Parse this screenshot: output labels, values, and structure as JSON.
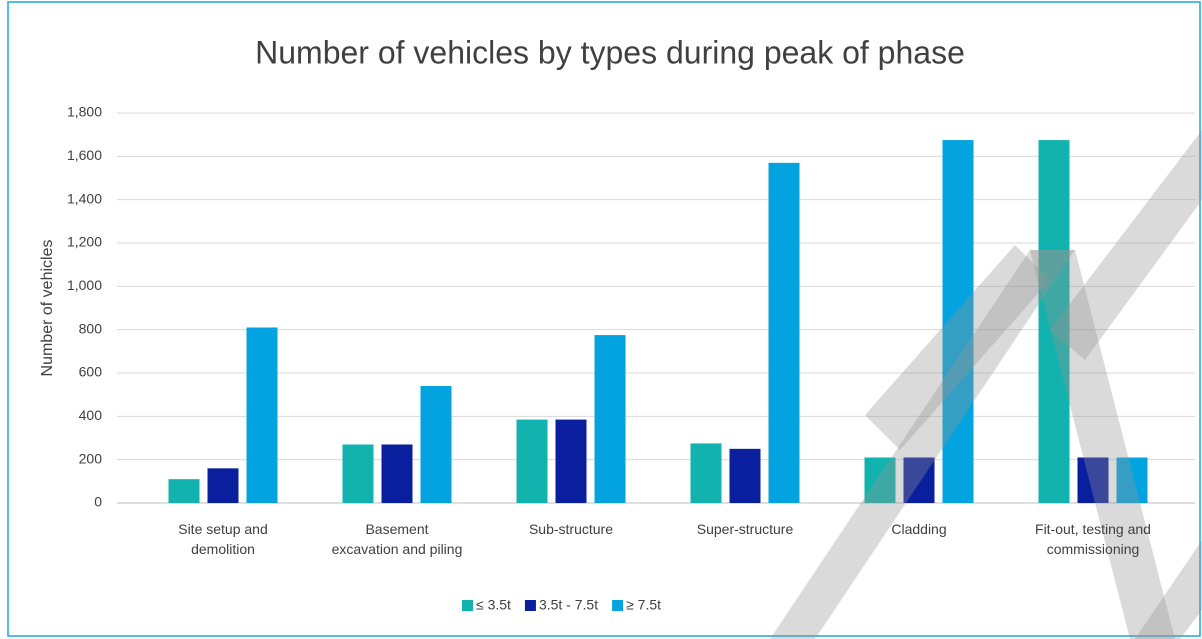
{
  "chart_data": {
    "type": "bar",
    "title": "Number of vehicles by types during peak of phase",
    "y_label": "Number of vehicles",
    "categories": [
      "Site setup and\ndemolition",
      "Basement\nexcavation and piling",
      "Sub-structure",
      "Super-structure",
      "Cladding",
      "Fit-out, testing and\ncommissioning"
    ],
    "series": [
      {
        "name": "≤ 3.5t",
        "color": "#12b2ae",
        "values": [
          110,
          270,
          385,
          275,
          210,
          1675
        ]
      },
      {
        "name": "3.5t - 7.5t",
        "color": "#0a1f9e",
        "values": [
          160,
          270,
          385,
          250,
          210,
          210
        ]
      },
      {
        "name": "≥ 7.5t",
        "color": "#03a3df",
        "values": [
          810,
          540,
          775,
          1570,
          1675,
          210
        ]
      }
    ],
    "ylim": [
      0,
      1800
    ],
    "yticks": [
      0,
      200,
      400,
      600,
      800,
      {
        "value": 1000,
        "label": "1,000"
      },
      {
        "value": 1200,
        "label": "1,200"
      },
      {
        "value": 1400,
        "label": "1,400"
      },
      {
        "value": 1600,
        "label": "1,600"
      },
      {
        "value": 1800,
        "label": "1,800"
      }
    ],
    "grid": true,
    "legend": "bottom"
  }
}
